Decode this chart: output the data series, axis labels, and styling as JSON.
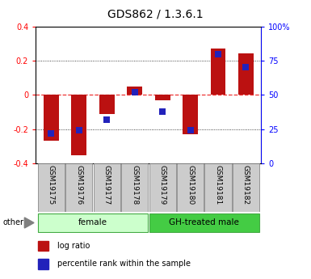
{
  "title": "GDS862 / 1.3.6.1",
  "samples": [
    "GSM19175",
    "GSM19176",
    "GSM19177",
    "GSM19178",
    "GSM19179",
    "GSM19180",
    "GSM19181",
    "GSM19182"
  ],
  "log_ratio": [
    -0.27,
    -0.355,
    -0.11,
    0.05,
    -0.03,
    -0.23,
    0.27,
    0.245
  ],
  "percentile_rank": [
    22,
    24,
    32,
    52,
    38,
    24,
    80,
    70
  ],
  "ylim_left": [
    -0.4,
    0.4
  ],
  "ylim_right": [
    0,
    100
  ],
  "yticks_left": [
    -0.4,
    -0.2,
    0.0,
    0.2,
    0.4
  ],
  "yticks_right": [
    0,
    25,
    50,
    75,
    100
  ],
  "ytick_labels_right": [
    "0",
    "25",
    "50",
    "75",
    "100%"
  ],
  "ytick_labels_left": [
    "-0.4",
    "-0.2",
    "0",
    "0.2",
    "0.4"
  ],
  "groups": [
    {
      "label": "female",
      "start": 0,
      "end": 3,
      "color": "#ccffcc"
    },
    {
      "label": "GH-treated male",
      "start": 4,
      "end": 7,
      "color": "#44cc44"
    }
  ],
  "bar_color": "#bb1111",
  "dot_color": "#2222bb",
  "bar_width": 0.55,
  "dot_size": 35,
  "zero_line_color": "#ee3333",
  "grid_color": "#111111",
  "legend_items": [
    "log ratio",
    "percentile rank within the sample"
  ],
  "other_label": "other",
  "tick_label_size": 7,
  "title_fontsize": 10,
  "sample_box_color": "#cccccc",
  "sample_box_edge": "#888888"
}
